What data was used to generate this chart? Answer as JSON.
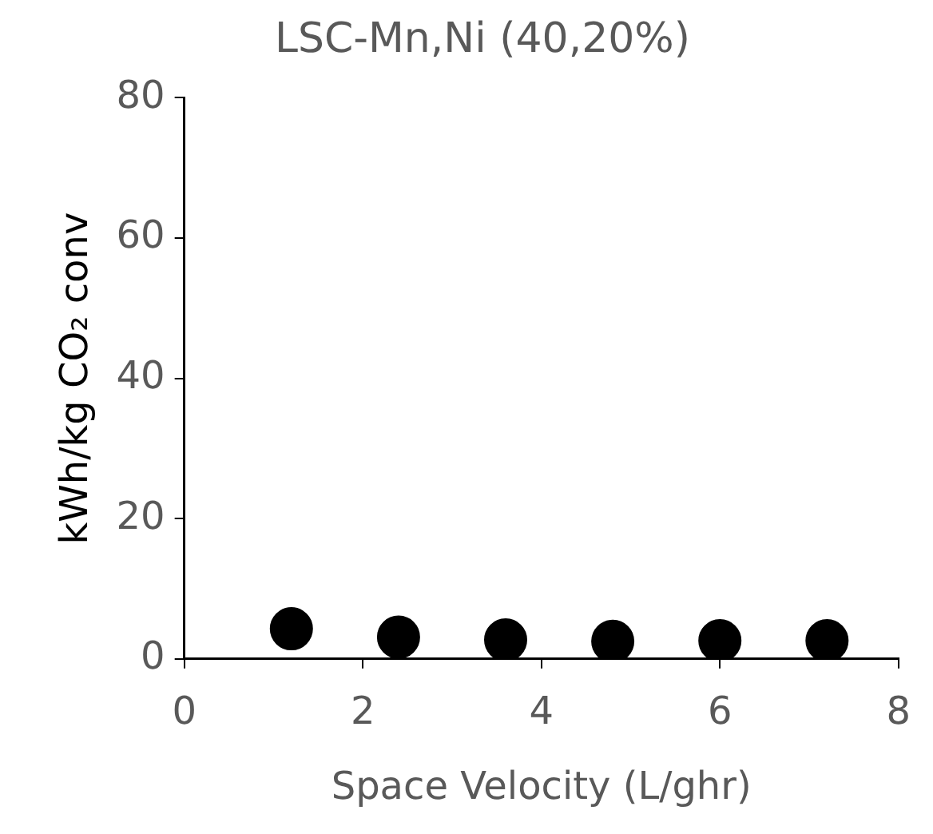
{
  "chart_data": {
    "type": "scatter",
    "title": "LSC-Mn,Ni (40,20%)",
    "xlabel": "Space Velocity (L/ghr)",
    "ylabel": "kWh/kg CO₂ conv",
    "x": [
      1.2,
      2.4,
      3.6,
      4.8,
      6.0,
      7.2
    ],
    "series": [
      {
        "color": "#000000",
        "values": [
          4.3,
          3.1,
          2.7,
          2.5,
          2.6,
          2.6
        ]
      }
    ],
    "xlim": [
      0,
      8
    ],
    "xticks": [
      0,
      2,
      4,
      6,
      8
    ],
    "ylim": [
      0,
      80
    ],
    "yticks": [
      0,
      20,
      40,
      60,
      80
    ],
    "grid": false,
    "legend": false,
    "marker": "circle"
  }
}
